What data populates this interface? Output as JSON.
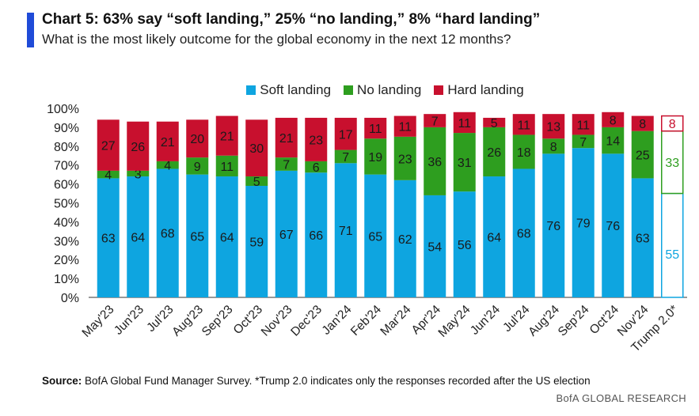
{
  "header": {
    "title": "Chart 5: 63% say “soft landing,” 25% “no landing,” 8% “hard landing”",
    "subtitle": "What is the most likely outcome for the global economy in the next 12 months?"
  },
  "colors": {
    "soft": "#0ea5e0",
    "no": "#2e9e1f",
    "hard": "#c8102e",
    "accent": "#1f4bd8"
  },
  "chart_data": {
    "type": "bar",
    "stacked": true,
    "title": "Chart 5: 63% say “soft landing,” 25% “no landing,” 8% “hard landing”",
    "ylim": [
      0,
      100
    ],
    "yticks": [
      "0%",
      "10%",
      "20%",
      "30%",
      "40%",
      "50%",
      "60%",
      "70%",
      "80%",
      "90%",
      "100%"
    ],
    "categories": [
      "May'23",
      "Jun'23",
      "Jul'23",
      "Aug'23",
      "Sep'23",
      "Oct'23",
      "Nov'23",
      "Dec'23",
      "Jan'24",
      "Feb'24",
      "Mar'24",
      "Apr'24",
      "May'24",
      "Jun'24",
      "Jul'24",
      "Aug'24",
      "Sep'24",
      "Oct'24",
      "Nov'24",
      "Trump 2.0*"
    ],
    "series": [
      {
        "name": "Soft landing",
        "values": [
          63,
          64,
          68,
          65,
          64,
          59,
          67,
          66,
          71,
          65,
          62,
          54,
          56,
          64,
          68,
          76,
          79,
          76,
          63,
          55
        ]
      },
      {
        "name": "No landing",
        "values": [
          4,
          3,
          4,
          9,
          11,
          5,
          7,
          6,
          7,
          19,
          23,
          36,
          31,
          26,
          18,
          8,
          7,
          14,
          25,
          33
        ]
      },
      {
        "name": "Hard landing",
        "values": [
          27,
          26,
          21,
          20,
          21,
          30,
          21,
          23,
          17,
          11,
          11,
          7,
          11,
          5,
          11,
          13,
          11,
          8,
          8,
          8
        ]
      }
    ],
    "highlight_last": true,
    "legend_position": "top-center"
  },
  "legend": [
    {
      "label": "Soft landing"
    },
    {
      "label": "No landing"
    },
    {
      "label": "Hard landing"
    }
  ],
  "footer": {
    "source_label": "Source:",
    "source_text": " BofA Global Fund Manager Survey. *Trump 2.0 indicates only the responses recorded after the US election",
    "brand": "BofA GLOBAL RESEARCH"
  }
}
